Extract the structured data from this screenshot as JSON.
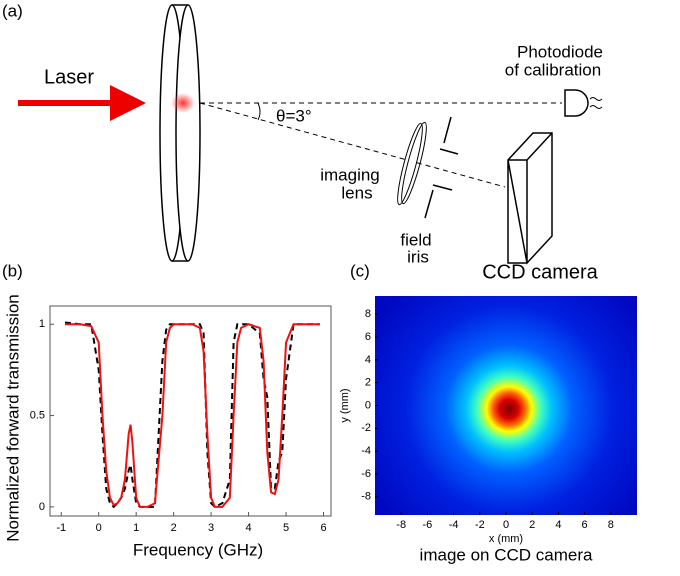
{
  "diagram": {
    "panel_label": "(a)",
    "laser_label": "Laser",
    "photodiode_label": [
      "Photodiode",
      "of calibration"
    ],
    "angle_label": "θ=3°",
    "lens_label": [
      "imaging",
      "lens"
    ],
    "iris_label": [
      "field",
      "iris"
    ],
    "camera_label": "CCD camera"
  },
  "chart_data": [
    {
      "type": "line",
      "panel_label": "(b)",
      "xlabel": "Frequency (GHz)",
      "ylabel": "Normalized forward transmission",
      "xlim": [
        -1.3,
        6.2
      ],
      "ylim": [
        -0.05,
        1.1
      ],
      "xticks": [
        -1,
        0,
        1,
        2,
        3,
        4,
        5,
        6
      ],
      "yticks": [
        0,
        0.5,
        1
      ],
      "x": [
        -0.9,
        -0.5,
        -0.2,
        0,
        0.1,
        0.2,
        0.3,
        0.4,
        0.5,
        0.6,
        0.7,
        0.8,
        0.85,
        0.9,
        1.0,
        1.1,
        1.3,
        1.5,
        1.7,
        1.8,
        1.9,
        2.0,
        2.5,
        2.7,
        2.8,
        2.9,
        3.0,
        3.1,
        3.3,
        3.5,
        3.6,
        3.7,
        3.8,
        4.0,
        4.3,
        4.4,
        4.5,
        4.6,
        4.7,
        4.8,
        4.9,
        5.0,
        5.2,
        5.9
      ],
      "series": [
        {
          "color": "#000000",
          "dash": true,
          "values": [
            1.01,
            1,
            1,
            0.75,
            0.4,
            0.1,
            0.02,
            0,
            0.02,
            0.05,
            0.1,
            0.2,
            0.23,
            0.15,
            0.02,
            0,
            0,
            0,
            0.8,
            0.97,
            1,
            1,
            1,
            1,
            0.95,
            0.3,
            0.02,
            0,
            0.02,
            0.15,
            0.9,
            1,
            1,
            1,
            0.95,
            0.7,
            0.6,
            0.1,
            0.1,
            0.25,
            0.3,
            0.7,
            1,
            1
          ]
        },
        {
          "color": "#ee1111",
          "dash": false,
          "values": [
            1,
            1,
            0.99,
            0.9,
            0.5,
            0.2,
            0.05,
            0.01,
            0.02,
            0.05,
            0.15,
            0.4,
            0.45,
            0.35,
            0.05,
            0,
            0,
            0.02,
            0.5,
            0.9,
            0.98,
            1,
            1,
            0.98,
            0.85,
            0.4,
            0.05,
            0,
            0,
            0.05,
            0.5,
            0.9,
            0.98,
            1,
            0.98,
            0.8,
            0.3,
            0.08,
            0.07,
            0.15,
            0.5,
            0.9,
            1,
            1
          ]
        }
      ]
    },
    {
      "type": "image",
      "panel_label": "(c)",
      "xlabel": "x (mm)",
      "ylabel": "y (mm)",
      "caption": "image on CCD camera",
      "xlim": [
        -10,
        10
      ],
      "ylim": [
        -9.6,
        9.6
      ],
      "xticks": [
        -8,
        -6,
        -4,
        -2,
        0,
        2,
        4,
        6,
        8
      ],
      "yticks": [
        -8,
        -6,
        -4,
        -2,
        0,
        2,
        4,
        6,
        8
      ]
    }
  ]
}
